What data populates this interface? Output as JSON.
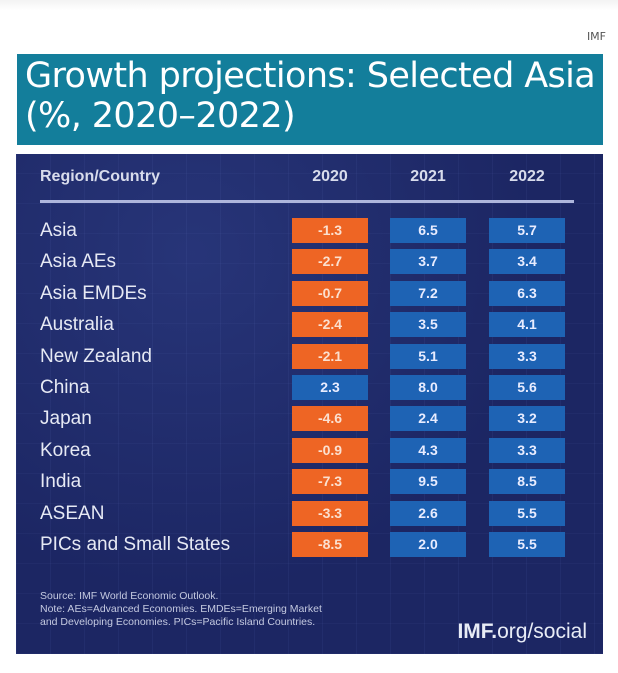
{
  "source_tag": "IMF",
  "title_line1": "Growth projections: Selected Asia",
  "title_line2": "(%, 2020–2022)",
  "colors": {
    "title_bg": "#137e9b",
    "panel_bg": "#1c2663",
    "negative": "#ee6524",
    "positive": "#1e63b4"
  },
  "table": {
    "headers": [
      "Region/Country",
      "2020",
      "2021",
      "2022"
    ],
    "rows": [
      {
        "name": "Asia",
        "values": [
          "-1.3",
          "6.5",
          "5.7"
        ]
      },
      {
        "name": "Asia AEs",
        "values": [
          "-2.7",
          "3.7",
          "3.4"
        ]
      },
      {
        "name": "Asia EMDEs",
        "values": [
          "-0.7",
          "7.2",
          "6.3"
        ]
      },
      {
        "name": "Australia",
        "values": [
          "-2.4",
          "3.5",
          "4.1"
        ]
      },
      {
        "name": "New Zealand",
        "values": [
          "-2.1",
          "5.1",
          "3.3"
        ]
      },
      {
        "name": "China",
        "values": [
          "2.3",
          "8.0",
          "5.6"
        ]
      },
      {
        "name": "Japan",
        "values": [
          "-4.6",
          "2.4",
          "3.2"
        ]
      },
      {
        "name": "Korea",
        "values": [
          "-0.9",
          "4.3",
          "3.3"
        ]
      },
      {
        "name": "India",
        "values": [
          "-7.3",
          "9.5",
          "8.5"
        ]
      },
      {
        "name": "ASEAN",
        "values": [
          "-3.3",
          "2.6",
          "5.5"
        ]
      },
      {
        "name": "PICs and Small States",
        "values": [
          "-8.5",
          "2.0",
          "5.5"
        ]
      }
    ]
  },
  "notes": [
    "Source: IMF World Economic Outlook.",
    "Note: AEs=Advanced Economies. EMDEs=Emerging Market",
    "and Developing Economies. PICs=Pacific Island Countries."
  ],
  "brand": {
    "bold": "IMF.",
    "rest": "org/social"
  }
}
